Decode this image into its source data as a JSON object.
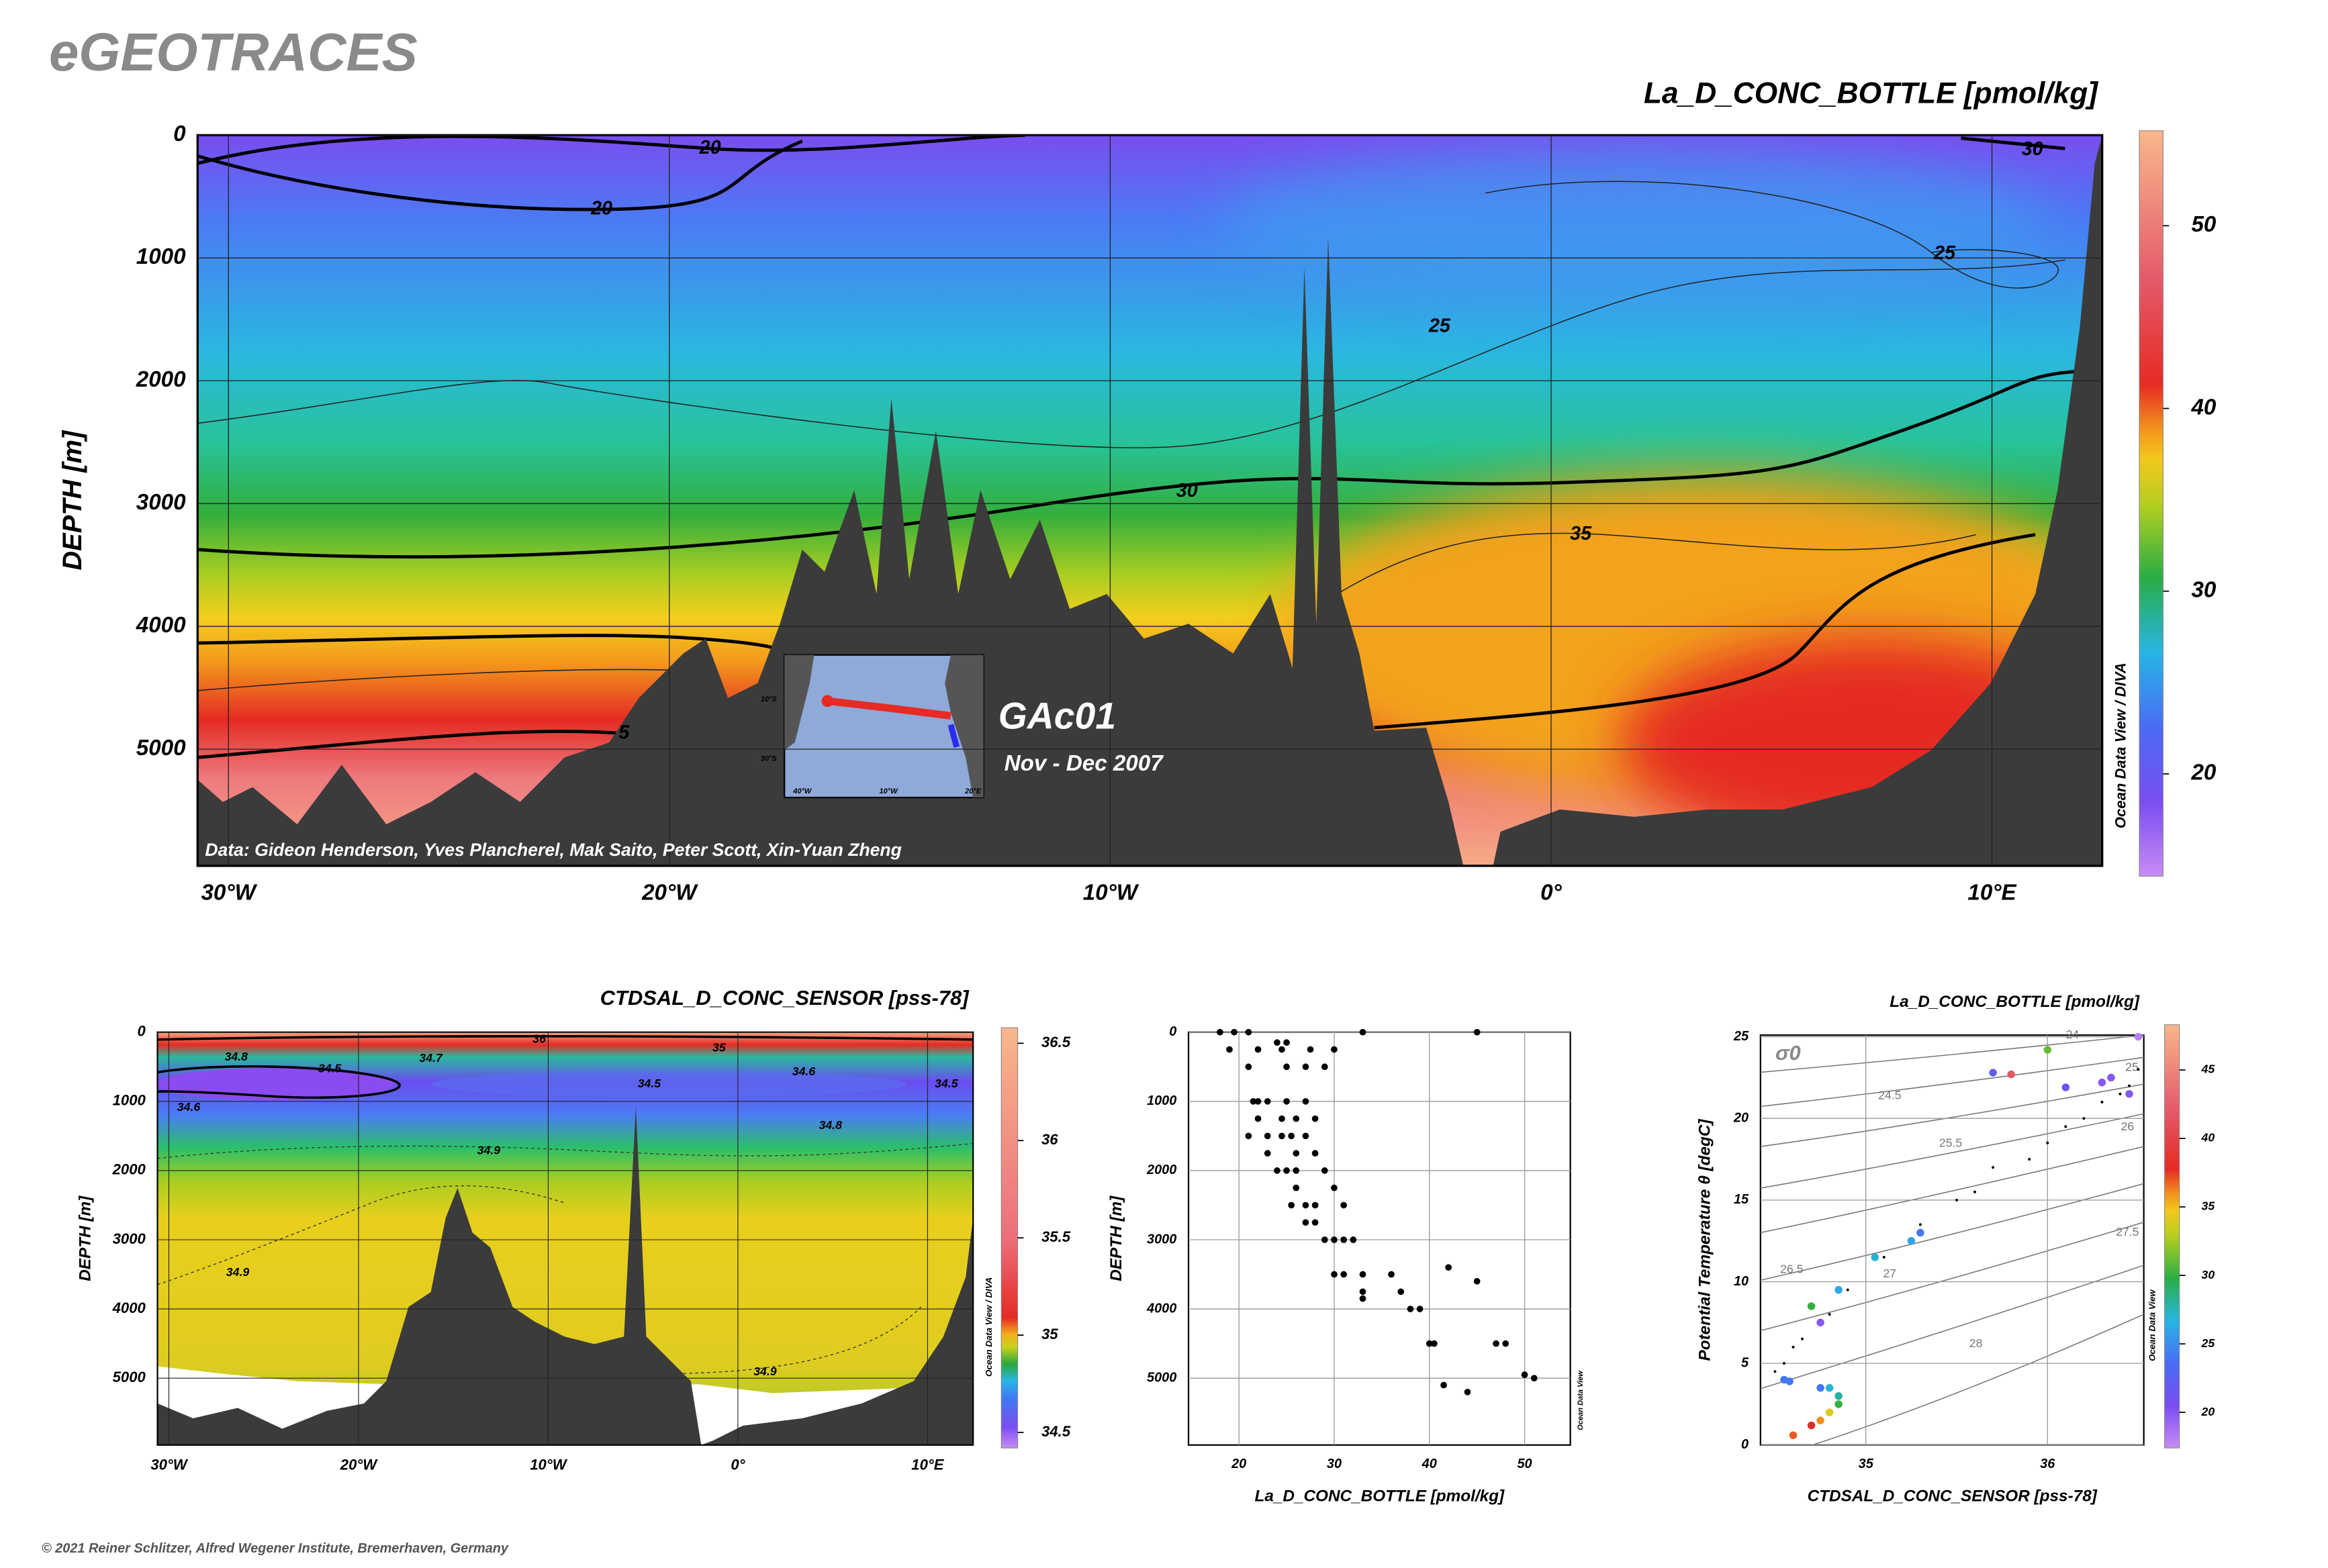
{
  "app_title": "eGEOTRACES",
  "copyright": "© 2021 Reiner Schlitzer, Alfred Wegener Institute, Bremerhaven, Germany",
  "chart_data": [
    {
      "type": "section",
      "title": "La_D_CONC_BOTTLE [pmol/kg]",
      "ylabel": "DEPTH [m]",
      "xlim": [
        -30.7,
        12.5
      ],
      "ylim": [
        0,
        5950
      ],
      "y_inverted": true,
      "xticks": [
        {
          "value": -30,
          "label": "30°W"
        },
        {
          "value": -20,
          "label": "20°W"
        },
        {
          "value": -10,
          "label": "10°W"
        },
        {
          "value": 0,
          "label": "0°"
        },
        {
          "value": 10,
          "label": "10°E"
        }
      ],
      "yticks": [
        0,
        1000,
        2000,
        3000,
        4000,
        5000
      ],
      "grid": true,
      "colorbar": {
        "lim": [
          14.4,
          55.2
        ],
        "ticks": [
          20,
          30,
          40,
          50
        ],
        "label": "Ocean Data View / DIVA"
      },
      "contour_labels": [
        20,
        20,
        25,
        25,
        30,
        30,
        35,
        5
      ],
      "annotations": [
        "Data: Gideon Henderson, Yves Plancherel, Mak Saito, Peter Scott, Xin-Yuan Zheng",
        "GAc01",
        "Nov - Dec 2007"
      ],
      "inset_labels": [
        "10°S",
        "30°S",
        "40°W",
        "10°W",
        "20°E"
      ]
    },
    {
      "type": "section",
      "title": "CTDSAL_D_CONC_SENSOR [pss-78]",
      "ylabel": "DEPTH [m]",
      "xlim": [
        -30.6,
        12.4
      ],
      "ylim": [
        0,
        5966
      ],
      "y_inverted": true,
      "xticks": [
        {
          "value": -30,
          "label": "30°W"
        },
        {
          "value": -20,
          "label": "20°W"
        },
        {
          "value": -10,
          "label": "10°W"
        },
        {
          "value": 0,
          "label": "0°"
        },
        {
          "value": 10,
          "label": "10°E"
        }
      ],
      "yticks": [
        0,
        1000,
        2000,
        3000,
        4000,
        5000
      ],
      "grid": true,
      "colorbar": {
        "lim": [
          34.42,
          36.58
        ],
        "ticks": [
          34.5,
          35,
          35.5,
          36,
          36.5
        ],
        "label": "Ocean Data View / DIVA"
      },
      "contour_labels": [
        36,
        34.8,
        35,
        34.7,
        34.5,
        34.6,
        34.5,
        34.6,
        34.5,
        34.8,
        34.9,
        34.9,
        34.9
      ]
    },
    {
      "type": "scatter",
      "xlabel": "La_D_CONC_BOTTLE [pmol/kg]",
      "ylabel": "DEPTH [m]",
      "xlim": [
        14.7,
        54.8
      ],
      "ylim": [
        0,
        5966
      ],
      "y_inverted": true,
      "xticks": [
        20,
        30,
        40,
        50
      ],
      "yticks": [
        0,
        1000,
        2000,
        3000,
        4000,
        5000
      ],
      "grid": true,
      "color": "#000000",
      "watermark": "Ocean Data View",
      "x": [
        18,
        19.5,
        21,
        33,
        45,
        19,
        22,
        24.5,
        27.5,
        30,
        24,
        25,
        21,
        25,
        27,
        29,
        21.5,
        22,
        23,
        25,
        27,
        22,
        24.5,
        26,
        28,
        21,
        23,
        24.5,
        25.5,
        27,
        23,
        26,
        28,
        24,
        25,
        26,
        29,
        26,
        30,
        25.5,
        27,
        28,
        31,
        27,
        28,
        29,
        30,
        31,
        32,
        30,
        31,
        33,
        36,
        33,
        37,
        33,
        38,
        39,
        42,
        45,
        40,
        40.5,
        47,
        48,
        41.5,
        44,
        50,
        51
      ],
      "y": [
        0,
        0,
        0,
        0,
        0,
        250,
        250,
        250,
        250,
        250,
        150,
        150,
        500,
        500,
        500,
        500,
        1000,
        1000,
        1000,
        1000,
        1000,
        1250,
        1250,
        1250,
        1250,
        1500,
        1500,
        1500,
        1500,
        1500,
        1750,
        1750,
        1750,
        2000,
        2000,
        2000,
        2000,
        2250,
        2250,
        2500,
        2500,
        2500,
        2500,
        2750,
        2750,
        3000,
        3000,
        3000,
        3000,
        3500,
        3500,
        3500,
        3500,
        3750,
        3750,
        3850,
        4000,
        4000,
        3400,
        3600,
        4500,
        4500,
        4500,
        4500,
        5100,
        5200,
        4950,
        5000
      ]
    },
    {
      "type": "scatter",
      "title": "La_D_CONC_BOTTLE [pmol/kg]",
      "xlabel": "CTDSAL_D_CONC_SENSOR [pss-78]",
      "ylabel": "Potential Temperature θ [degC]",
      "xlim": [
        34.42,
        36.53
      ],
      "ylim": [
        0,
        25.1
      ],
      "xticks": [
        35,
        36
      ],
      "yticks": [
        0,
        5,
        10,
        15,
        20,
        25
      ],
      "grid": true,
      "colorbar": {
        "lim": [
          17.4,
          48.3
        ],
        "ticks": [
          20,
          25,
          30,
          35,
          40,
          45
        ],
        "label": "Ocean Data View"
      },
      "isopycnal_symbol": "σ0",
      "isopycnal_labels": [
        "24",
        "24.5",
        "25",
        "25.5",
        "26",
        "26.5",
        "27",
        "27.5",
        "28"
      ],
      "series": [
        {
          "x": [
            34.55,
            34.58,
            34.75,
            34.7,
            34.85,
            35.05,
            35.3,
            35.25,
            35.7,
            35.8,
            36.0,
            36.3,
            36.35,
            36.45,
            36.5,
            36.1,
            34.8,
            34.85,
            34.8,
            34.75,
            34.7,
            34.6,
            34.75,
            34.85
          ],
          "y": [
            4,
            3.9,
            7.5,
            8.5,
            9.5,
            11.5,
            13,
            12.5,
            22.8,
            22.7,
            24.2,
            22.2,
            22.5,
            21.5,
            25,
            21.9,
            3.5,
            2.5,
            2,
            1.5,
            1.2,
            0.6,
            3.5,
            3
          ],
          "c": [
            24,
            24,
            20,
            30,
            26,
            27,
            24,
            26,
            22,
            42,
            31,
            20,
            20,
            20,
            18,
            21,
            27,
            30,
            34,
            36,
            38,
            37,
            24,
            28
          ]
        },
        {
          "color": "#000000",
          "x": [
            34.5,
            34.55,
            34.6,
            34.65,
            34.8,
            34.9,
            35.1,
            35.3,
            35.5,
            35.6,
            35.7,
            35.9,
            36.0,
            36.1,
            36.2,
            36.3,
            36.4,
            36.45,
            36.5
          ],
          "y": [
            4.5,
            5,
            6,
            6.5,
            8,
            9.5,
            11.5,
            13.5,
            15,
            15.5,
            17,
            17.5,
            18.5,
            19.5,
            20,
            21,
            21.5,
            22,
            23
          ]
        }
      ]
    }
  ]
}
